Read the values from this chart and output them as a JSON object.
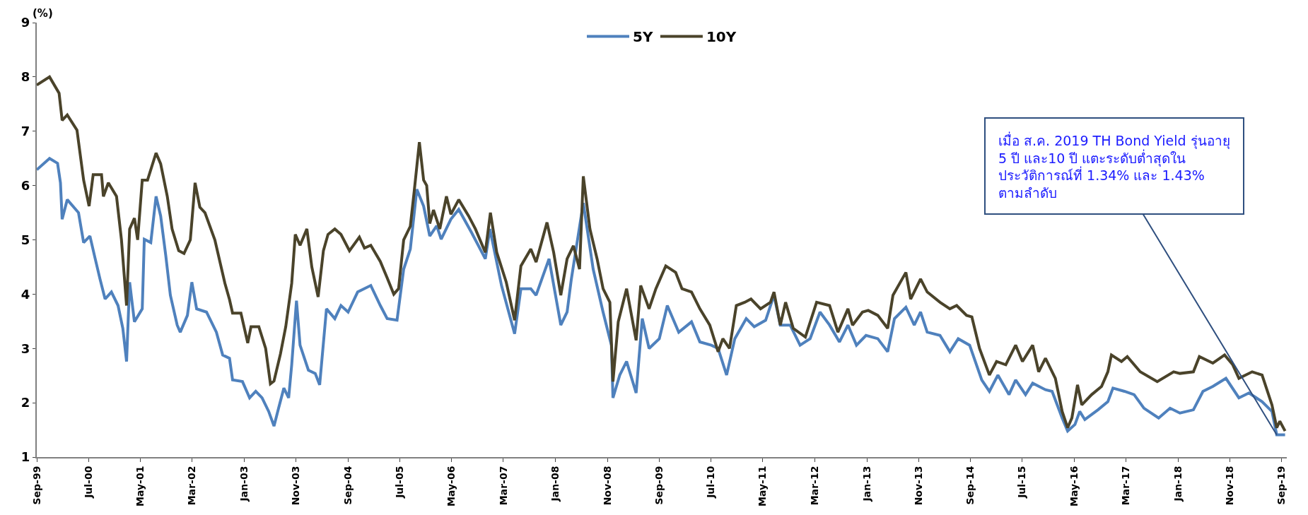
{
  "chart_data": {
    "type": "line",
    "ylabel": "(%)",
    "legend": "top",
    "marker": "none",
    "line_style": "solid",
    "xlim": [
      "1999-09-01",
      "2019-10-01"
    ],
    "ylim": [
      1,
      9
    ],
    "yticks": [
      1,
      2,
      3,
      4,
      5,
      6,
      7,
      8,
      9
    ],
    "xticks": [
      {
        "value": "1999-09-01",
        "label": "Sep-99"
      },
      {
        "value": "2000-07-01",
        "label": "Jul-00"
      },
      {
        "value": "2001-05-01",
        "label": "May-01"
      },
      {
        "value": "2002-03-01",
        "label": "Mar-02"
      },
      {
        "value": "2003-01-01",
        "label": "Jan-03"
      },
      {
        "value": "2003-11-01",
        "label": "Nov-03"
      },
      {
        "value": "2004-09-01",
        "label": "Sep-04"
      },
      {
        "value": "2005-07-01",
        "label": "Jul-05"
      },
      {
        "value": "2006-05-01",
        "label": "May-06"
      },
      {
        "value": "2007-03-01",
        "label": "Mar-07"
      },
      {
        "value": "2008-01-01",
        "label": "Jan-08"
      },
      {
        "value": "2008-11-01",
        "label": "Nov-08"
      },
      {
        "value": "2009-09-01",
        "label": "Sep-09"
      },
      {
        "value": "2010-07-01",
        "label": "Jul-10"
      },
      {
        "value": "2011-05-01",
        "label": "May-11"
      },
      {
        "value": "2012-03-01",
        "label": "Mar-12"
      },
      {
        "value": "2013-01-01",
        "label": "Jan-13"
      },
      {
        "value": "2013-11-01",
        "label": "Nov-13"
      },
      {
        "value": "2014-09-01",
        "label": "Sep-14"
      },
      {
        "value": "2015-07-01",
        "label": "Jul-15"
      },
      {
        "value": "2016-05-01",
        "label": "May-16"
      },
      {
        "value": "2017-03-01",
        "label": "Mar-17"
      },
      {
        "value": "2018-01-01",
        "label": "Jan-18"
      },
      {
        "value": "2018-11-01",
        "label": "Nov-18"
      },
      {
        "value": "2019-09-01",
        "label": "Sep-19"
      }
    ],
    "series": [
      {
        "name": "5Y",
        "color": "#4f81bd",
        "x": [
          "1999-09-01",
          "1999-11-15",
          "2000-01-01",
          "2000-01-18",
          "2000-01-28",
          "2000-02-27",
          "2000-05-03",
          "2000-06-02",
          "2000-07-09",
          "2000-08-09",
          "2000-09-06",
          "2000-10-06",
          "2000-11-12",
          "2000-12-21",
          "2001-01-18",
          "2001-02-09",
          "2001-02-27",
          "2001-03-27",
          "2001-05-12",
          "2001-05-24",
          "2001-07-01",
          "2001-08-01",
          "2001-08-28",
          "2001-09-27",
          "2001-10-24",
          "2001-12-03",
          "2001-12-21",
          "2002-02-01",
          "2002-02-27",
          "2002-03-27",
          "2002-05-24",
          "2002-07-21",
          "2002-08-27",
          "2002-10-06",
          "2002-10-24",
          "2002-12-21",
          "2003-02-01",
          "2003-03-09",
          "2003-04-15",
          "2003-05-24",
          "2003-06-24",
          "2003-07-21",
          "2003-08-21",
          "2003-09-18",
          "2003-10-06",
          "2003-11-03",
          "2003-11-24",
          "2004-01-12",
          "2004-02-21",
          "2004-03-18",
          "2004-04-27",
          "2004-06-15",
          "2004-07-21",
          "2004-09-01",
          "2004-10-27",
          "2005-01-12",
          "2005-03-09",
          "2005-04-18",
          "2005-06-15",
          "2005-07-24",
          "2005-09-01",
          "2005-10-09",
          "2005-11-18",
          "2005-12-24",
          "2006-02-03",
          "2006-03-01",
          "2006-04-27",
          "2006-06-12",
          "2006-08-27",
          "2006-11-15",
          "2006-12-12",
          "2007-02-18",
          "2007-05-06",
          "2007-06-12",
          "2007-08-09",
          "2007-09-09",
          "2007-11-24",
          "2008-02-01",
          "2008-03-09",
          "2008-04-03",
          "2008-06-12",
          "2008-08-09",
          "2008-10-06",
          "2008-11-24",
          "2008-12-03",
          "2009-01-12",
          "2009-02-21",
          "2009-04-18",
          "2009-05-24",
          "2009-07-03",
          "2009-09-01",
          "2009-10-18",
          "2009-12-24",
          "2010-03-09",
          "2010-04-27",
          "2010-07-03",
          "2010-08-12",
          "2010-10-01",
          "2010-11-18",
          "2011-01-24",
          "2011-03-12",
          "2011-05-18",
          "2011-07-06",
          "2011-08-12",
          "2011-10-09",
          "2011-12-06",
          "2012-02-03",
          "2012-04-01",
          "2012-05-27",
          "2012-07-24",
          "2012-09-12",
          "2012-11-01",
          "2012-12-27",
          "2013-03-06",
          "2013-05-03",
          "2013-06-12",
          "2013-08-18",
          "2013-10-06",
          "2013-11-12",
          "2013-12-21",
          "2014-03-06",
          "2014-05-03",
          "2014-06-21",
          "2014-08-27",
          "2014-11-06",
          "2014-12-21",
          "2015-02-09",
          "2015-04-15",
          "2015-05-24",
          "2015-07-21",
          "2015-09-01",
          "2015-11-15",
          "2015-12-24",
          "2016-02-21",
          "2016-03-24",
          "2016-05-06",
          "2016-06-03",
          "2016-07-03",
          "2016-09-18",
          "2016-11-15",
          "2016-12-15",
          "2017-02-21",
          "2017-04-18",
          "2017-06-15",
          "2017-09-09",
          "2017-11-15",
          "2018-01-12",
          "2018-04-01",
          "2018-05-27",
          "2018-07-24",
          "2018-10-09",
          "2018-12-24",
          "2019-02-21",
          "2019-05-09",
          "2019-07-06",
          "2019-08-03",
          "2019-09-21"
        ],
        "values": [
          6.29,
          6.5,
          6.41,
          6.05,
          5.38,
          5.74,
          5.5,
          4.95,
          5.07,
          4.65,
          4.28,
          3.91,
          4.04,
          3.79,
          3.37,
          2.76,
          4.22,
          3.49,
          3.73,
          5.01,
          4.95,
          5.8,
          5.44,
          4.71,
          3.98,
          3.43,
          3.3,
          3.61,
          4.22,
          3.73,
          3.67,
          3.3,
          2.88,
          2.82,
          2.42,
          2.39,
          2.09,
          2.21,
          2.09,
          1.84,
          1.57,
          1.9,
          2.27,
          2.09,
          2.7,
          3.88,
          3.06,
          2.6,
          2.54,
          2.33,
          3.73,
          3.55,
          3.79,
          3.67,
          4.04,
          4.16,
          3.79,
          3.55,
          3.52,
          4.46,
          4.83,
          5.93,
          5.62,
          5.07,
          5.26,
          5.01,
          5.38,
          5.56,
          5.13,
          4.65,
          5.2,
          4.16,
          3.27,
          4.1,
          4.1,
          3.98,
          4.65,
          3.43,
          3.67,
          4.28,
          5.68,
          4.46,
          3.67,
          3.06,
          2.09,
          2.51,
          2.76,
          2.18,
          3.55,
          3.0,
          3.18,
          3.79,
          3.3,
          3.49,
          3.12,
          3.06,
          3.0,
          2.51,
          3.18,
          3.55,
          3.4,
          3.52,
          3.98,
          3.43,
          3.43,
          3.06,
          3.18,
          3.67,
          3.43,
          3.12,
          3.43,
          3.06,
          3.24,
          3.18,
          2.94,
          3.55,
          3.76,
          3.43,
          3.67,
          3.3,
          3.24,
          2.94,
          3.18,
          3.06,
          2.42,
          2.21,
          2.51,
          2.15,
          2.42,
          2.15,
          2.36,
          2.24,
          2.21,
          1.72,
          1.48,
          1.6,
          1.84,
          1.69,
          1.87,
          2.02,
          2.27,
          2.21,
          2.15,
          1.9,
          1.72,
          1.9,
          1.81,
          1.87,
          2.21,
          2.3,
          2.45,
          2.09,
          2.18,
          2.02,
          1.84,
          1.41,
          1.41
        ]
      },
      {
        "name": "10Y",
        "color": "#4a432a",
        "x": [
          "1999-09-01",
          "1999-11-15",
          "2000-01-10",
          "2000-01-28",
          "2000-02-27",
          "2000-04-24",
          "2000-06-02",
          "2000-07-04",
          "2000-07-28",
          "2000-09-15",
          "2000-09-26",
          "2000-10-25",
          "2000-12-12",
          "2001-01-10",
          "2001-02-09",
          "2001-02-27",
          "2001-03-27",
          "2001-04-15",
          "2001-05-12",
          "2001-06-12",
          "2001-08-01",
          "2001-08-28",
          "2001-10-06",
          "2001-11-03",
          "2001-12-12",
          "2002-01-12",
          "2002-02-18",
          "2002-03-18",
          "2002-04-15",
          "2002-05-15",
          "2002-07-12",
          "2002-09-09",
          "2002-10-06",
          "2002-10-24",
          "2002-12-12",
          "2003-01-21",
          "2003-02-09",
          "2003-03-27",
          "2003-05-06",
          "2003-06-03",
          "2003-06-24",
          "2003-08-01",
          "2003-09-01",
          "2003-10-06",
          "2003-10-27",
          "2003-11-24",
          "2004-01-03",
          "2004-02-01",
          "2004-03-09",
          "2004-04-09",
          "2004-05-06",
          "2004-06-15",
          "2004-07-21",
          "2004-09-09",
          "2004-11-06",
          "2004-12-06",
          "2005-01-12",
          "2005-03-09",
          "2005-04-18",
          "2005-05-27",
          "2005-06-24",
          "2005-07-24",
          "2005-09-01",
          "2005-09-24",
          "2005-10-24",
          "2005-11-18",
          "2005-12-06",
          "2005-12-24",
          "2006-01-15",
          "2006-02-21",
          "2006-04-01",
          "2006-04-27",
          "2006-06-12",
          "2006-08-09",
          "2006-09-18",
          "2006-11-15",
          "2006-12-15",
          "2007-01-21",
          "2007-03-18",
          "2007-05-06",
          "2007-06-12",
          "2007-08-09",
          "2007-09-09",
          "2007-11-12",
          "2007-12-21",
          "2008-02-01",
          "2008-03-09",
          "2008-04-15",
          "2008-05-21",
          "2008-06-12",
          "2008-07-21",
          "2008-09-01",
          "2008-10-06",
          "2008-11-15",
          "2008-12-03",
          "2009-01-03",
          "2009-02-21",
          "2009-04-18",
          "2009-05-15",
          "2009-07-03",
          "2009-08-12",
          "2009-10-09",
          "2009-12-06",
          "2010-01-12",
          "2010-03-09",
          "2010-04-27",
          "2010-06-24",
          "2010-08-12",
          "2010-09-09",
          "2010-10-18",
          "2010-11-27",
          "2011-01-15",
          "2011-02-21",
          "2011-04-18",
          "2011-06-15",
          "2011-07-06",
          "2011-08-12",
          "2011-09-12",
          "2011-10-27",
          "2012-01-06",
          "2012-03-12",
          "2012-05-27",
          "2012-07-15",
          "2012-09-12",
          "2012-10-09",
          "2012-12-06",
          "2013-01-09",
          "2013-03-06",
          "2013-05-03",
          "2013-06-03",
          "2013-08-18",
          "2013-09-15",
          "2013-11-12",
          "2013-12-21",
          "2014-03-06",
          "2014-05-03",
          "2014-06-12",
          "2014-08-09",
          "2014-09-09",
          "2014-10-24",
          "2014-12-21",
          "2015-02-01",
          "2015-03-27",
          "2015-05-24",
          "2015-07-03",
          "2015-09-01",
          "2015-10-06",
          "2015-11-15",
          "2016-01-12",
          "2016-02-21",
          "2016-03-24",
          "2016-04-18",
          "2016-05-21",
          "2016-06-15",
          "2016-08-12",
          "2016-10-09",
          "2016-11-15",
          "2016-12-06",
          "2017-02-03",
          "2017-03-09",
          "2017-05-24",
          "2017-09-01",
          "2017-12-06",
          "2018-01-12",
          "2018-04-01",
          "2018-05-06",
          "2018-07-24",
          "2018-10-01",
          "2018-11-18",
          "2018-12-24",
          "2019-03-12",
          "2019-05-09",
          "2019-07-06",
          "2019-08-03",
          "2019-08-21",
          "2019-09-21"
        ],
        "values": [
          7.85,
          8.0,
          7.7,
          7.2,
          7.3,
          7.02,
          6.1,
          5.62,
          6.2,
          6.2,
          5.8,
          6.05,
          5.8,
          5.0,
          3.79,
          5.2,
          5.4,
          5.0,
          6.1,
          6.1,
          6.6,
          6.4,
          5.8,
          5.2,
          4.8,
          4.75,
          5.0,
          6.05,
          5.6,
          5.5,
          5.0,
          4.2,
          3.9,
          3.65,
          3.65,
          3.1,
          3.4,
          3.4,
          3.0,
          2.35,
          2.4,
          2.9,
          3.4,
          4.2,
          5.1,
          4.9,
          5.2,
          4.5,
          3.95,
          4.8,
          5.1,
          5.2,
          5.1,
          4.8,
          5.05,
          4.85,
          4.9,
          4.6,
          4.3,
          4.0,
          4.1,
          5.0,
          5.25,
          5.9,
          6.8,
          6.1,
          6.0,
          5.3,
          5.55,
          5.2,
          5.8,
          5.47,
          5.74,
          5.44,
          5.2,
          4.77,
          5.5,
          4.77,
          4.22,
          3.52,
          4.52,
          4.83,
          4.59,
          5.32,
          4.77,
          3.98,
          4.65,
          4.89,
          4.46,
          6.17,
          5.2,
          4.65,
          4.1,
          3.85,
          2.39,
          3.49,
          4.1,
          3.15,
          4.16,
          3.73,
          4.1,
          4.52,
          4.4,
          4.1,
          4.04,
          3.73,
          3.43,
          2.94,
          3.18,
          3.0,
          3.79,
          3.85,
          3.91,
          3.73,
          3.85,
          4.04,
          3.43,
          3.85,
          3.37,
          3.21,
          3.85,
          3.79,
          3.3,
          3.73,
          3.43,
          3.67,
          3.7,
          3.61,
          3.37,
          3.98,
          4.4,
          3.91,
          4.28,
          4.04,
          3.85,
          3.73,
          3.79,
          3.61,
          3.58,
          3.0,
          2.51,
          2.76,
          2.7,
          3.06,
          2.76,
          3.06,
          2.57,
          2.82,
          2.45,
          1.84,
          1.54,
          1.72,
          2.33,
          1.96,
          2.15,
          2.3,
          2.57,
          2.88,
          2.76,
          2.85,
          2.57,
          2.39,
          2.57,
          2.54,
          2.57,
          2.85,
          2.73,
          2.88,
          2.7,
          2.45,
          2.57,
          2.51,
          1.96,
          1.54,
          1.66,
          1.48
        ]
      }
    ],
    "annotations": [
      {
        "text": "เมื่อ ส.ค. 2019 TH Bond Yield รุ่นอายุ\n5 ปี และ10 ปี แตะระดับต่ำสุดใน\nประวัติการณ์ที่ 1.34% และ 1.43%\nตามลำดับ",
        "x": "2019-08-03",
        "y": 1.41
      }
    ]
  }
}
